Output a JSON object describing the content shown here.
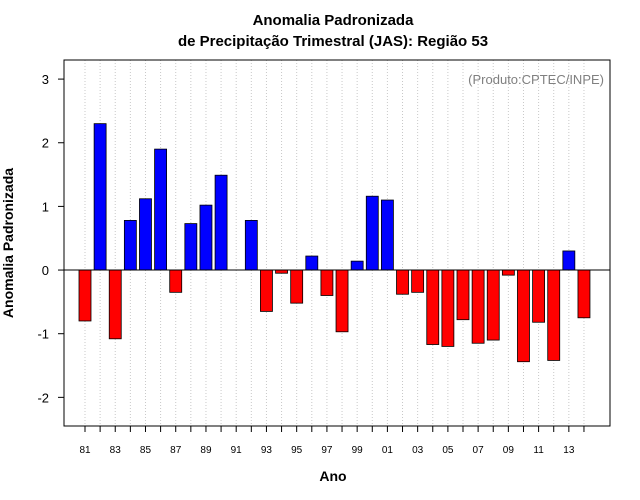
{
  "chart_data": {
    "type": "bar",
    "title": "Anomalia Padronizada",
    "subtitle": "de Precipitação Trimestral (JAS): Região 53",
    "annotation": "(Produto:CPTEC/INPE)",
    "xlabel": "Ano",
    "ylabel": "Anomalia Padronizada",
    "ylim": [
      -2.45,
      3.3
    ],
    "yticks": [
      -2,
      -1,
      0,
      1,
      2,
      3
    ],
    "categories": [
      "81",
      "82",
      "83",
      "84",
      "85",
      "86",
      "87",
      "88",
      "89",
      "90",
      "91",
      "92",
      "93",
      "94",
      "95",
      "96",
      "97",
      "98",
      "99",
      "00",
      "01",
      "02",
      "03",
      "04",
      "05",
      "06",
      "07",
      "08",
      "09",
      "10",
      "11",
      "12",
      "13",
      "14"
    ],
    "tick_labels": [
      "81",
      "",
      "83",
      "",
      "85",
      "",
      "87",
      "",
      "89",
      "",
      "91",
      "",
      "93",
      "",
      "95",
      "",
      "97",
      "",
      "99",
      "",
      "01",
      "",
      "03",
      "",
      "05",
      "",
      "07",
      "",
      "09",
      "",
      "11",
      "",
      "13",
      ""
    ],
    "values": [
      -0.8,
      2.3,
      -1.08,
      0.78,
      1.12,
      1.9,
      -0.35,
      0.73,
      1.02,
      1.49,
      0.0,
      0.78,
      -0.65,
      -0.05,
      -0.52,
      0.22,
      -0.4,
      -0.97,
      0.14,
      1.16,
      1.1,
      -0.38,
      -0.35,
      -1.17,
      -1.2,
      -0.78,
      -1.15,
      -1.1,
      -0.08,
      -1.44,
      -0.82,
      -1.42,
      0.3,
      -0.75
    ],
    "colors": {
      "positive": "#0000ff",
      "negative": "#ff0000",
      "grid": "#c8c8c8",
      "axis": "#000000"
    },
    "grid": true
  }
}
